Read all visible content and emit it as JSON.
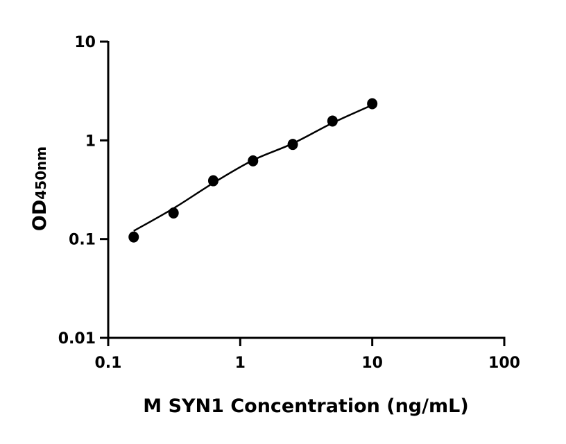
{
  "chart_data": {
    "type": "scatter",
    "title": "",
    "xlabel": "M SYN1 Concentration (ng/mL)",
    "ylabel_main": "OD",
    "ylabel_sub": "450nm",
    "x_scale": "log",
    "y_scale": "log",
    "xlim": [
      0.1,
      100
    ],
    "ylim": [
      0.01,
      10
    ],
    "x_ticks": [
      0.1,
      1,
      10,
      100
    ],
    "x_tick_labels": [
      "0.1",
      "1",
      "10",
      "100"
    ],
    "y_ticks": [
      0.01,
      0.1,
      1,
      10
    ],
    "y_tick_labels": [
      "0.01",
      "0.1",
      "1",
      "10"
    ],
    "grid": false,
    "series": [
      {
        "x": [
          0.156,
          0.3125,
          0.625,
          1.25,
          2.5,
          5,
          10
        ],
        "y": [
          0.105,
          0.184,
          0.39,
          0.62,
          0.91,
          1.57,
          2.35
        ],
        "marker": "circle",
        "color": "#000000"
      }
    ],
    "fit_curve": {
      "x": [
        0.156,
        0.3125,
        0.625,
        1.25,
        2.5,
        5,
        10
      ],
      "y": [
        0.121,
        0.205,
        0.37,
        0.63,
        0.93,
        1.5,
        2.28
      ],
      "color": "#000000"
    }
  }
}
